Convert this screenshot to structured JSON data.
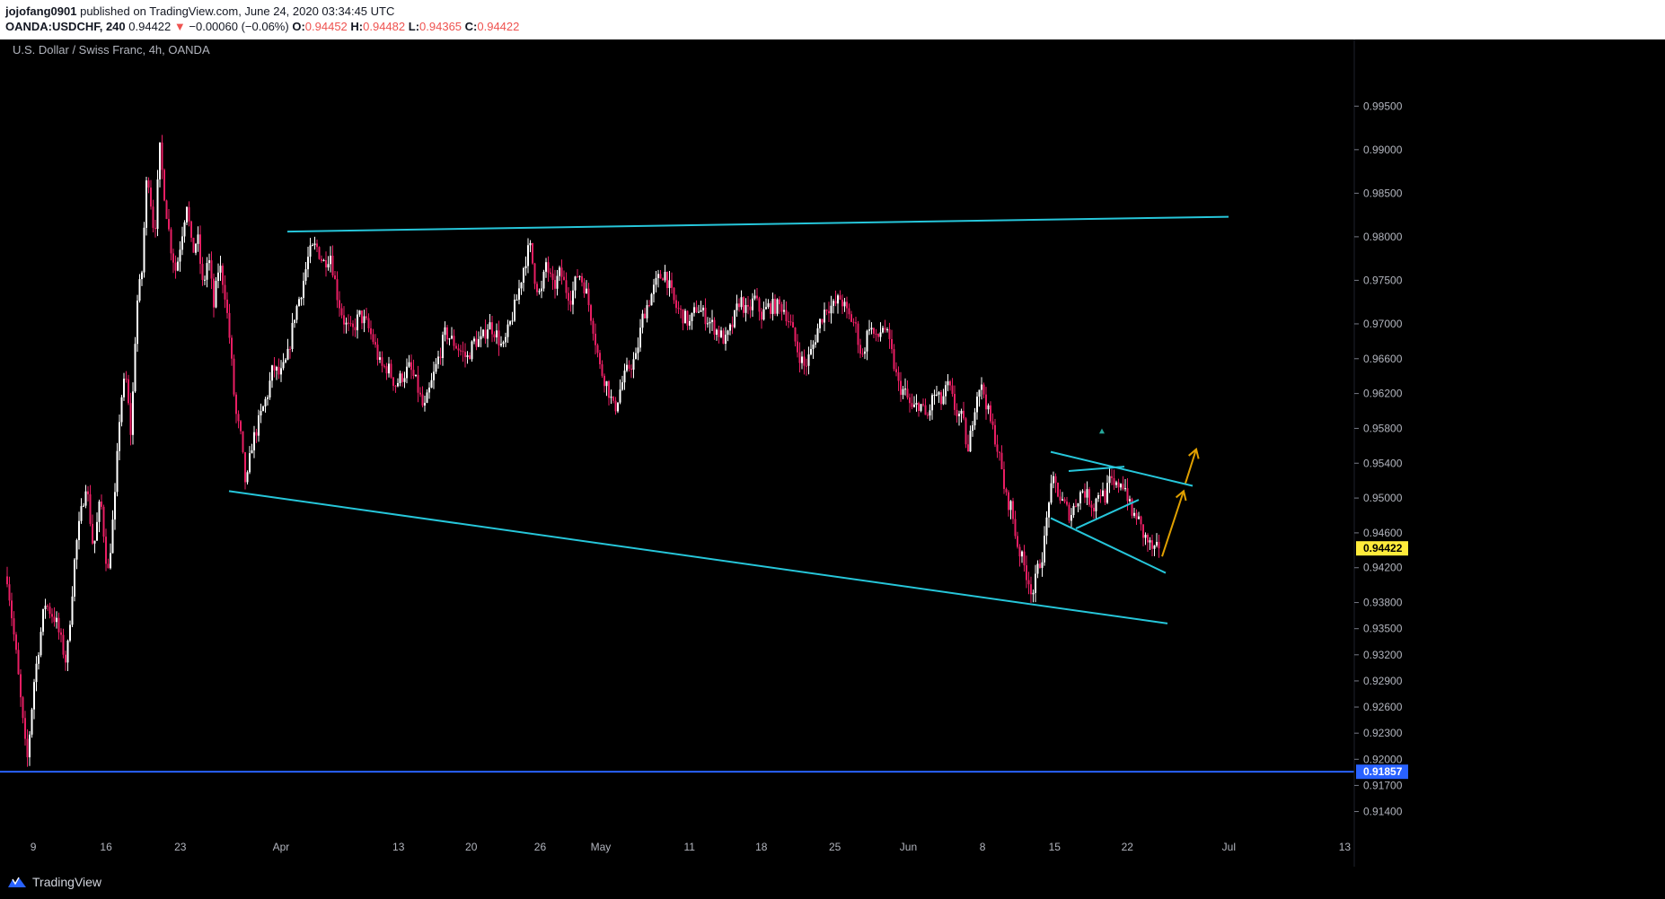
{
  "header": {
    "author": "jojofang0901",
    "published": "published on TradingView.com, June 24, 2020 03:34:45 UTC",
    "symbol": "OANDA:USDCHF, 240",
    "last": "0.94422",
    "arrow": "▼",
    "change": "−0.00060 (−0.06%)",
    "o_label": "O:",
    "o": "0.94452",
    "h_label": "H:",
    "h": "0.94482",
    "l_label": "L:",
    "l": "0.94365",
    "c_label": "C:",
    "c": "0.94422"
  },
  "footer": {
    "brand": "TradingView",
    "logo_icon": "tradingview-logo-icon"
  },
  "colors": {
    "background": "#000000",
    "up_candle": "#ffffff",
    "down_candle": "#e91e63",
    "trendline": "#26c6da",
    "support": "#2962ff",
    "projection": "#e0a000",
    "last_price_tag": "#ffeb3b"
  },
  "chart_data": {
    "type": "candlestick",
    "title": "U.S. Dollar / Swiss Franc, 4h, OANDA",
    "ylim": [
      0.9122,
      1.0008
    ],
    "y_ticks": [
      "0.99500",
      "0.99000",
      "0.98500",
      "0.98000",
      "0.97500",
      "0.97000",
      "0.96600",
      "0.96200",
      "0.95800",
      "0.95400",
      "0.95000",
      "0.94600",
      "0.94200",
      "0.93800",
      "0.93500",
      "0.93200",
      "0.92900",
      "0.92600",
      "0.92300",
      "0.92000",
      "0.91700",
      "0.91400"
    ],
    "x_ticks": [
      "9",
      "16",
      "23",
      "Apr",
      "13",
      "20",
      "26",
      "May",
      "11",
      "18",
      "25",
      "Jun",
      "8",
      "15",
      "22",
      "Jul",
      "13"
    ],
    "last_price": "0.94422",
    "support_price": "0.91857",
    "anchors": [
      [
        0,
        0.957
      ],
      [
        8,
        0.941
      ],
      [
        18,
        0.932
      ],
      [
        30,
        0.9195
      ],
      [
        38,
        0.929
      ],
      [
        50,
        0.938
      ],
      [
        62,
        0.936
      ],
      [
        74,
        0.931
      ],
      [
        84,
        0.944
      ],
      [
        96,
        0.952
      ],
      [
        104,
        0.944
      ],
      [
        112,
        0.95
      ],
      [
        120,
        0.941
      ],
      [
        128,
        0.95
      ],
      [
        134,
        0.961
      ],
      [
        140,
        0.964
      ],
      [
        146,
        0.957
      ],
      [
        152,
        0.972
      ],
      [
        158,
        0.976
      ],
      [
        164,
        0.988
      ],
      [
        172,
        0.98
      ],
      [
        178,
        0.99
      ],
      [
        184,
        0.984
      ],
      [
        190,
        0.979
      ],
      [
        196,
        0.976
      ],
      [
        202,
        0.98
      ],
      [
        208,
        0.984
      ],
      [
        214,
        0.978
      ],
      [
        220,
        0.98
      ],
      [
        226,
        0.974
      ],
      [
        232,
        0.978
      ],
      [
        238,
        0.972
      ],
      [
        244,
        0.977
      ],
      [
        250,
        0.974
      ],
      [
        256,
        0.968
      ],
      [
        262,
        0.96
      ],
      [
        268,
        0.957
      ],
      [
        274,
        0.951
      ],
      [
        280,
        0.956
      ],
      [
        286,
        0.958
      ],
      [
        292,
        0.96
      ],
      [
        298,
        0.962
      ],
      [
        304,
        0.965
      ],
      [
        312,
        0.964
      ],
      [
        320,
        0.966
      ],
      [
        328,
        0.971
      ],
      [
        336,
        0.974
      ],
      [
        344,
        0.978
      ],
      [
        352,
        0.979
      ],
      [
        360,
        0.977
      ],
      [
        368,
        0.978
      ],
      [
        376,
        0.973
      ],
      [
        384,
        0.97
      ],
      [
        392,
        0.969
      ],
      [
        400,
        0.971
      ],
      [
        408,
        0.97
      ],
      [
        416,
        0.968
      ],
      [
        424,
        0.965
      ],
      [
        432,
        0.965
      ],
      [
        440,
        0.963
      ],
      [
        448,
        0.964
      ],
      [
        456,
        0.965
      ],
      [
        464,
        0.963
      ],
      [
        472,
        0.96
      ],
      [
        480,
        0.963
      ],
      [
        488,
        0.966
      ],
      [
        496,
        0.969
      ],
      [
        504,
        0.968
      ],
      [
        512,
        0.967
      ],
      [
        520,
        0.966
      ],
      [
        528,
        0.968
      ],
      [
        536,
        0.968
      ],
      [
        544,
        0.97
      ],
      [
        552,
        0.969
      ],
      [
        560,
        0.967
      ],
      [
        568,
        0.97
      ],
      [
        576,
        0.973
      ],
      [
        584,
        0.977
      ],
      [
        590,
        0.979
      ],
      [
        596,
        0.975
      ],
      [
        602,
        0.973
      ],
      [
        608,
        0.977
      ],
      [
        616,
        0.974
      ],
      [
        624,
        0.976
      ],
      [
        630,
        0.974
      ],
      [
        636,
        0.973
      ],
      [
        644,
        0.976
      ],
      [
        652,
        0.974
      ],
      [
        660,
        0.97
      ],
      [
        668,
        0.965
      ],
      [
        676,
        0.963
      ],
      [
        684,
        0.96
      ],
      [
        692,
        0.963
      ],
      [
        700,
        0.965
      ],
      [
        708,
        0.966
      ],
      [
        716,
        0.971
      ],
      [
        724,
        0.973
      ],
      [
        732,
        0.975
      ],
      [
        740,
        0.976
      ],
      [
        746,
        0.974
      ],
      [
        752,
        0.972
      ],
      [
        760,
        0.971
      ],
      [
        768,
        0.97
      ],
      [
        776,
        0.972
      ],
      [
        784,
        0.971
      ],
      [
        792,
        0.97
      ],
      [
        800,
        0.969
      ],
      [
        808,
        0.968
      ],
      [
        816,
        0.97
      ],
      [
        824,
        0.973
      ],
      [
        832,
        0.971
      ],
      [
        840,
        0.973
      ],
      [
        848,
        0.971
      ],
      [
        856,
        0.972
      ],
      [
        864,
        0.972
      ],
      [
        872,
        0.972
      ],
      [
        880,
        0.97
      ],
      [
        888,
        0.967
      ],
      [
        896,
        0.965
      ],
      [
        904,
        0.967
      ],
      [
        912,
        0.97
      ],
      [
        920,
        0.972
      ],
      [
        928,
        0.972
      ],
      [
        936,
        0.973
      ],
      [
        944,
        0.971
      ],
      [
        952,
        0.97
      ],
      [
        960,
        0.966
      ],
      [
        968,
        0.97
      ],
      [
        976,
        0.968
      ],
      [
        984,
        0.97
      ],
      [
        992,
        0.967
      ],
      [
        1000,
        0.963
      ],
      [
        1008,
        0.962
      ],
      [
        1016,
        0.96
      ],
      [
        1024,
        0.961
      ],
      [
        1032,
        0.959
      ],
      [
        1040,
        0.962
      ],
      [
        1048,
        0.961
      ],
      [
        1056,
        0.963
      ],
      [
        1064,
        0.96
      ],
      [
        1072,
        0.959
      ],
      [
        1078,
        0.955
      ],
      [
        1084,
        0.96
      ],
      [
        1090,
        0.963
      ],
      [
        1096,
        0.962
      ],
      [
        1102,
        0.959
      ],
      [
        1108,
        0.957
      ],
      [
        1114,
        0.954
      ],
      [
        1120,
        0.95
      ],
      [
        1126,
        0.949
      ],
      [
        1132,
        0.945
      ],
      [
        1138,
        0.943
      ],
      [
        1144,
        0.941
      ],
      [
        1150,
        0.939
      ],
      [
        1156,
        0.942
      ],
      [
        1162,
        0.944
      ],
      [
        1168,
        0.95
      ],
      [
        1174,
        0.952
      ],
      [
        1180,
        0.95
      ],
      [
        1186,
        0.949
      ],
      [
        1192,
        0.948
      ],
      [
        1200,
        0.95
      ],
      [
        1206,
        0.951
      ],
      [
        1212,
        0.95
      ],
      [
        1218,
        0.949
      ],
      [
        1224,
        0.951
      ],
      [
        1230,
        0.95
      ],
      [
        1236,
        0.952
      ],
      [
        1242,
        0.951
      ],
      [
        1248,
        0.952
      ],
      [
        1254,
        0.951
      ],
      [
        1260,
        0.948
      ],
      [
        1266,
        0.948
      ],
      [
        1272,
        0.946
      ],
      [
        1278,
        0.945
      ],
      [
        1284,
        0.944
      ],
      [
        1292,
        0.9442
      ]
    ],
    "annotations": {
      "channel_top": [
        [
          320,
          0.9806
        ],
        [
          1368,
          0.9823
        ]
      ],
      "channel_bottom": [
        [
          255,
          0.9508
        ],
        [
          1300,
          0.9356
        ]
      ],
      "triangle_upper": [
        [
          1170,
          0.9553
        ],
        [
          1328,
          0.9514
        ]
      ],
      "triangle_lower": [
        [
          1170,
          0.9477
        ],
        [
          1298,
          0.9414
        ]
      ],
      "wedge_upper": [
        [
          1190,
          0.9531
        ],
        [
          1252,
          0.9536
        ]
      ],
      "wedge_lower": [
        [
          1198,
          0.9465
        ],
        [
          1268,
          0.9498
        ]
      ],
      "support_line": [
        [
          0,
          0.91857
        ],
        [
          1508,
          0.91857
        ]
      ],
      "projection_1": [
        [
          1294,
          0.9433
        ],
        [
          1318,
          0.9508
        ]
      ],
      "projection_2": [
        [
          1320,
          0.9517
        ],
        [
          1332,
          0.9556
        ]
      ]
    }
  }
}
